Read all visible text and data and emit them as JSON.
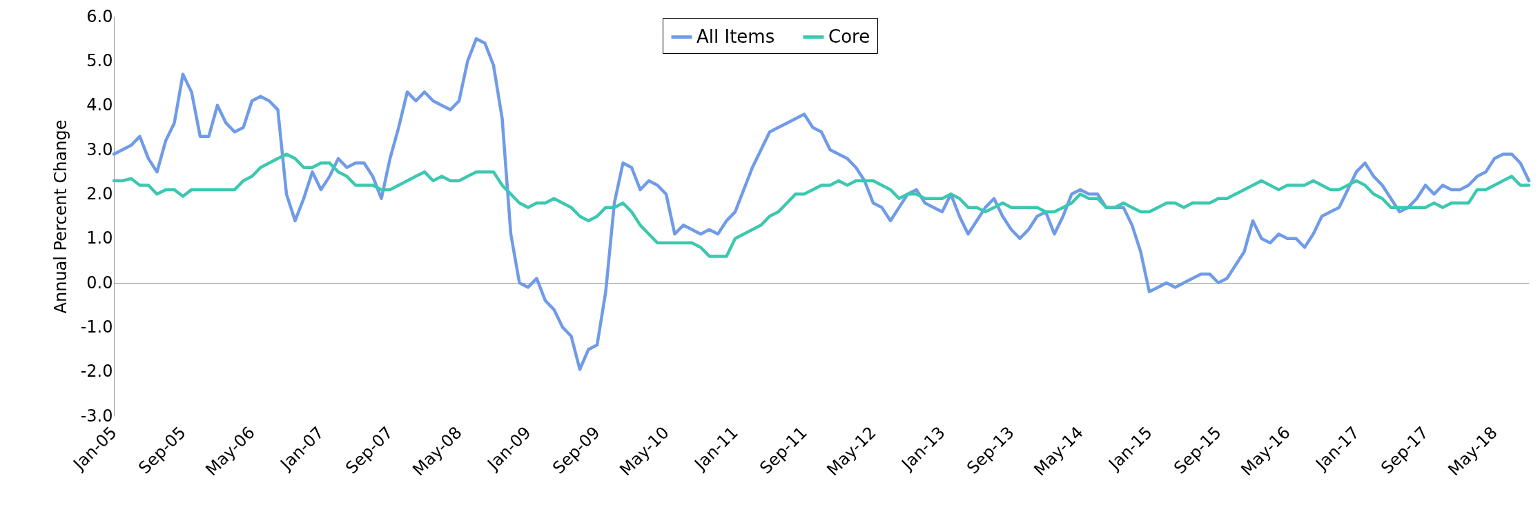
{
  "chart_data": {
    "type": "line",
    "ylabel": "Annual Percent Change",
    "categories": [
      "Jan-05",
      null,
      null,
      null,
      null,
      null,
      null,
      null,
      "Sep-05",
      null,
      null,
      null,
      null,
      null,
      null,
      null,
      "May-06",
      null,
      null,
      null,
      null,
      null,
      null,
      null,
      "Jan-07",
      null,
      null,
      null,
      null,
      null,
      null,
      null,
      "Sep-07",
      null,
      null,
      null,
      null,
      null,
      null,
      null,
      "May-08",
      null,
      null,
      null,
      null,
      null,
      null,
      null,
      "Jan-09",
      null,
      null,
      null,
      null,
      null,
      null,
      null,
      "Sep-09",
      null,
      null,
      null,
      null,
      null,
      null,
      null,
      "May-10",
      null,
      null,
      null,
      null,
      null,
      null,
      null,
      "Jan-11",
      null,
      null,
      null,
      null,
      null,
      null,
      null,
      "Sep-11",
      null,
      null,
      null,
      null,
      null,
      null,
      null,
      "May-12",
      null,
      null,
      null,
      null,
      null,
      null,
      null,
      "Jan-13",
      null,
      null,
      null,
      null,
      null,
      null,
      null,
      "Sep-13",
      null,
      null,
      null,
      null,
      null,
      null,
      null,
      "May-14",
      null,
      null,
      null,
      null,
      null,
      null,
      null,
      "Jan-15",
      null,
      null,
      null,
      null,
      null,
      null,
      null,
      "Sep-15",
      null,
      null,
      null,
      null,
      null,
      null,
      null,
      "May-16",
      null,
      null,
      null,
      null,
      null,
      null,
      null,
      "Jan-17",
      null,
      null,
      null,
      null,
      null,
      null,
      null,
      "Sep-17",
      null,
      null,
      null,
      null,
      null,
      null,
      null,
      "May-18",
      null,
      null,
      null,
      null
    ],
    "series": [
      {
        "name": "All Items",
        "color": "#6f9be8",
        "values": [
          2.9,
          3.0,
          3.1,
          3.3,
          2.8,
          2.5,
          3.2,
          3.6,
          4.7,
          4.3,
          3.3,
          3.3,
          4.0,
          3.6,
          3.4,
          3.5,
          4.1,
          4.2,
          4.1,
          3.9,
          2.0,
          1.4,
          1.9,
          2.5,
          2.1,
          2.4,
          2.8,
          2.6,
          2.7,
          2.7,
          2.4,
          1.9,
          2.8,
          3.5,
          4.3,
          4.1,
          4.3,
          4.1,
          4.0,
          3.9,
          4.1,
          5.0,
          5.5,
          5.4,
          4.9,
          3.7,
          1.1,
          0.0,
          -0.1,
          0.1,
          -0.4,
          -0.6,
          -1.0,
          -1.2,
          -1.95,
          -1.5,
          -1.4,
          -0.2,
          1.8,
          2.7,
          2.6,
          2.1,
          2.3,
          2.2,
          2.0,
          1.1,
          1.3,
          1.2,
          1.1,
          1.2,
          1.1,
          1.4,
          1.6,
          2.1,
          2.6,
          3.0,
          3.4,
          3.5,
          3.6,
          3.7,
          3.8,
          3.5,
          3.4,
          3.0,
          2.9,
          2.8,
          2.6,
          2.3,
          1.8,
          1.7,
          1.4,
          1.7,
          2.0,
          2.1,
          1.8,
          1.7,
          1.6,
          2.0,
          1.5,
          1.1,
          1.4,
          1.7,
          1.9,
          1.5,
          1.2,
          1.0,
          1.2,
          1.5,
          1.6,
          1.1,
          1.5,
          2.0,
          2.1,
          2.0,
          2.0,
          1.7,
          1.7,
          1.7,
          1.3,
          0.7,
          -0.2,
          -0.1,
          0.0,
          -0.1,
          0.0,
          0.1,
          0.2,
          0.2,
          0.0,
          0.1,
          0.4,
          0.7,
          1.4,
          1.0,
          0.9,
          1.1,
          1.0,
          1.0,
          0.8,
          1.1,
          1.5,
          1.6,
          1.7,
          2.1,
          2.5,
          2.7,
          2.4,
          2.2,
          1.9,
          1.6,
          1.7,
          1.9,
          2.2,
          2.0,
          2.2,
          2.1,
          2.1,
          2.2,
          2.4,
          2.5,
          2.8,
          2.9,
          2.9,
          2.7,
          2.3
        ]
      },
      {
        "name": "Core",
        "color": "#3cc8b0",
        "values": [
          2.3,
          2.3,
          2.35,
          2.2,
          2.2,
          2.0,
          2.1,
          2.1,
          1.95,
          2.1,
          2.1,
          2.1,
          2.1,
          2.1,
          2.1,
          2.3,
          2.4,
          2.6,
          2.7,
          2.8,
          2.9,
          2.8,
          2.6,
          2.6,
          2.7,
          2.7,
          2.5,
          2.4,
          2.2,
          2.2,
          2.2,
          2.1,
          2.1,
          2.2,
          2.3,
          2.4,
          2.5,
          2.3,
          2.4,
          2.3,
          2.3,
          2.4,
          2.5,
          2.5,
          2.5,
          2.2,
          2.0,
          1.8,
          1.7,
          1.8,
          1.8,
          1.9,
          1.8,
          1.7,
          1.5,
          1.4,
          1.5,
          1.7,
          1.7,
          1.8,
          1.6,
          1.3,
          1.1,
          0.9,
          0.9,
          0.9,
          0.9,
          0.9,
          0.8,
          0.6,
          0.6,
          0.6,
          1.0,
          1.1,
          1.2,
          1.3,
          1.5,
          1.6,
          1.8,
          2.0,
          2.0,
          2.1,
          2.2,
          2.2,
          2.3,
          2.2,
          2.3,
          2.3,
          2.3,
          2.2,
          2.1,
          1.9,
          2.0,
          2.0,
          1.9,
          1.9,
          1.9,
          2.0,
          1.9,
          1.7,
          1.7,
          1.6,
          1.7,
          1.8,
          1.7,
          1.7,
          1.7,
          1.7,
          1.6,
          1.6,
          1.7,
          1.8,
          2.0,
          1.9,
          1.9,
          1.7,
          1.7,
          1.8,
          1.7,
          1.6,
          1.6,
          1.7,
          1.8,
          1.8,
          1.7,
          1.8,
          1.8,
          1.8,
          1.9,
          1.9,
          2.0,
          2.1,
          2.2,
          2.3,
          2.2,
          2.1,
          2.2,
          2.2,
          2.2,
          2.3,
          2.2,
          2.1,
          2.1,
          2.2,
          2.3,
          2.2,
          2.0,
          1.9,
          1.7,
          1.7,
          1.7,
          1.7,
          1.7,
          1.8,
          1.7,
          1.8,
          1.8,
          1.8,
          2.1,
          2.1,
          2.2,
          2.3,
          2.4,
          2.2,
          2.2
        ]
      }
    ],
    "ylim": [
      -3,
      6
    ],
    "yticks": [
      {
        "value": -3,
        "label": "-3.0"
      },
      {
        "value": -2,
        "label": "-2.0"
      },
      {
        "value": -1,
        "label": "-1.0"
      },
      {
        "value": 0,
        "label": "0.0"
      },
      {
        "value": 1,
        "label": "1.0"
      },
      {
        "value": 2,
        "label": "2.0"
      },
      {
        "value": 3,
        "label": "3.0"
      },
      {
        "value": 4,
        "label": "4.0"
      },
      {
        "value": 5,
        "label": "5.0"
      },
      {
        "value": 6,
        "label": "6.0"
      }
    ],
    "legend": "top",
    "marker": "none",
    "line_style": "solid"
  }
}
